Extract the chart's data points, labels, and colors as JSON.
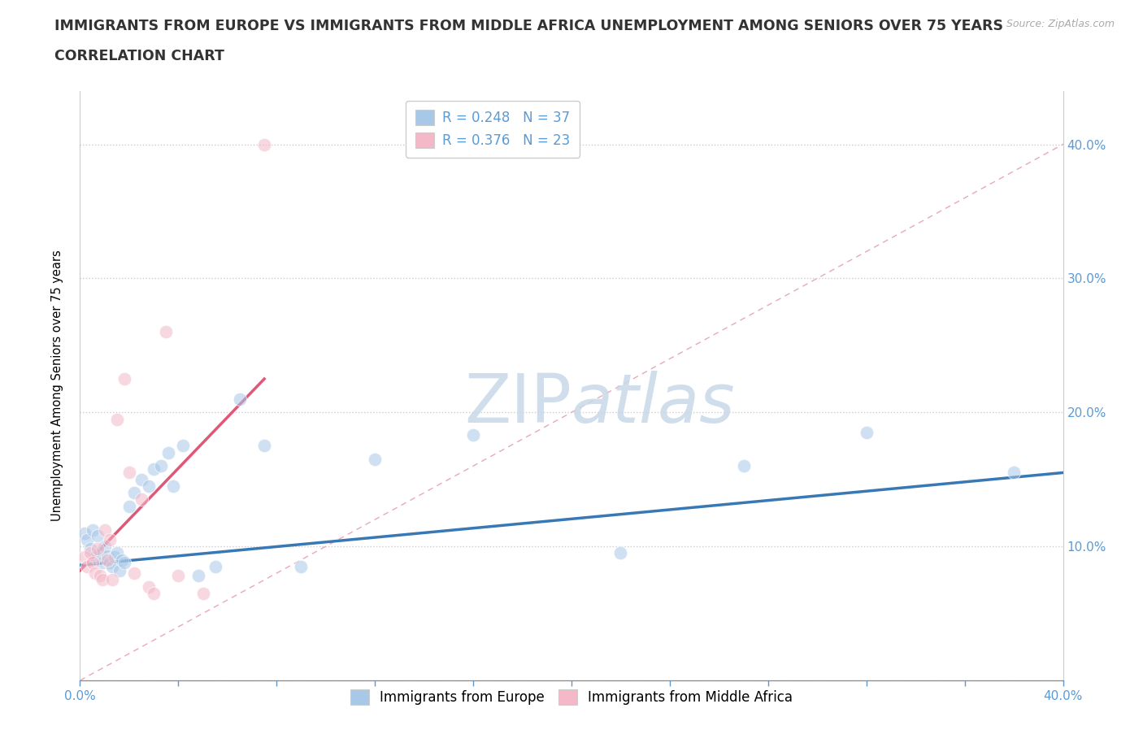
{
  "title_line1": "IMMIGRANTS FROM EUROPE VS IMMIGRANTS FROM MIDDLE AFRICA UNEMPLOYMENT AMONG SENIORS OVER 75 YEARS",
  "title_line2": "CORRELATION CHART",
  "source_text": "Source: ZipAtlas.com",
  "ylabel": "Unemployment Among Seniors over 75 years",
  "xlim": [
    0.0,
    0.4
  ],
  "ylim": [
    0.0,
    0.44
  ],
  "xticks": [
    0.0,
    0.04,
    0.08,
    0.12,
    0.16,
    0.2,
    0.24,
    0.28,
    0.32,
    0.36,
    0.4
  ],
  "yticks": [
    0.0,
    0.1,
    0.2,
    0.3,
    0.4
  ],
  "ytick_labels_right": [
    "",
    "10.0%",
    "20.0%",
    "30.0%",
    "40.0%"
  ],
  "xtick_labels": [
    "0.0%",
    "",
    "",
    "",
    "",
    "",
    "",
    "",
    "",
    "",
    "40.0%"
  ],
  "grid_color": "#cccccc",
  "watermark_zip": "ZIP",
  "watermark_atlas": "atlas",
  "blue_color": "#a8c8e8",
  "pink_color": "#f4b8c8",
  "blue_line_color": "#3878b4",
  "pink_line_color": "#e05878",
  "ref_line_color": "#e8a8b8",
  "legend_R_blue": "0.248",
  "legend_N_blue": "37",
  "legend_R_pink": "0.376",
  "legend_N_pink": "23",
  "blue_scatter_x": [
    0.002,
    0.003,
    0.004,
    0.005,
    0.006,
    0.007,
    0.008,
    0.009,
    0.01,
    0.011,
    0.012,
    0.013,
    0.014,
    0.015,
    0.016,
    0.017,
    0.018,
    0.02,
    0.022,
    0.025,
    0.028,
    0.03,
    0.033,
    0.036,
    0.038,
    0.042,
    0.048,
    0.055,
    0.065,
    0.075,
    0.09,
    0.12,
    0.16,
    0.22,
    0.27,
    0.32,
    0.38
  ],
  "blue_scatter_y": [
    0.11,
    0.105,
    0.098,
    0.112,
    0.092,
    0.108,
    0.095,
    0.088,
    0.1,
    0.093,
    0.088,
    0.085,
    0.092,
    0.095,
    0.082,
    0.09,
    0.088,
    0.13,
    0.14,
    0.15,
    0.145,
    0.158,
    0.16,
    0.17,
    0.145,
    0.175,
    0.078,
    0.085,
    0.21,
    0.175,
    0.085,
    0.165,
    0.183,
    0.095,
    0.16,
    0.185,
    0.155
  ],
  "pink_scatter_x": [
    0.002,
    0.003,
    0.004,
    0.005,
    0.006,
    0.007,
    0.008,
    0.009,
    0.01,
    0.011,
    0.012,
    0.013,
    0.015,
    0.018,
    0.02,
    0.022,
    0.025,
    0.028,
    0.03,
    0.035,
    0.04,
    0.05,
    0.075
  ],
  "pink_scatter_y": [
    0.092,
    0.085,
    0.095,
    0.088,
    0.08,
    0.098,
    0.078,
    0.075,
    0.112,
    0.09,
    0.105,
    0.075,
    0.195,
    0.225,
    0.155,
    0.08,
    0.135,
    0.07,
    0.065,
    0.26,
    0.078,
    0.065,
    0.4
  ],
  "blue_trend_x": [
    0.0,
    0.4
  ],
  "blue_trend_y": [
    0.086,
    0.155
  ],
  "pink_trend_x": [
    0.0,
    0.075
  ],
  "pink_trend_y": [
    0.082,
    0.225
  ],
  "ref_line_x": [
    0.0,
    0.42
  ],
  "ref_line_y": [
    0.0,
    0.42
  ],
  "title_fontsize": 12.5,
  "axis_label_fontsize": 10.5,
  "tick_fontsize": 11,
  "legend_fontsize": 12,
  "marker_size": 140,
  "marker_alpha": 0.55,
  "background_color": "#ffffff",
  "right_axis_color": "#5b9bd5",
  "tick_color": "#888888"
}
